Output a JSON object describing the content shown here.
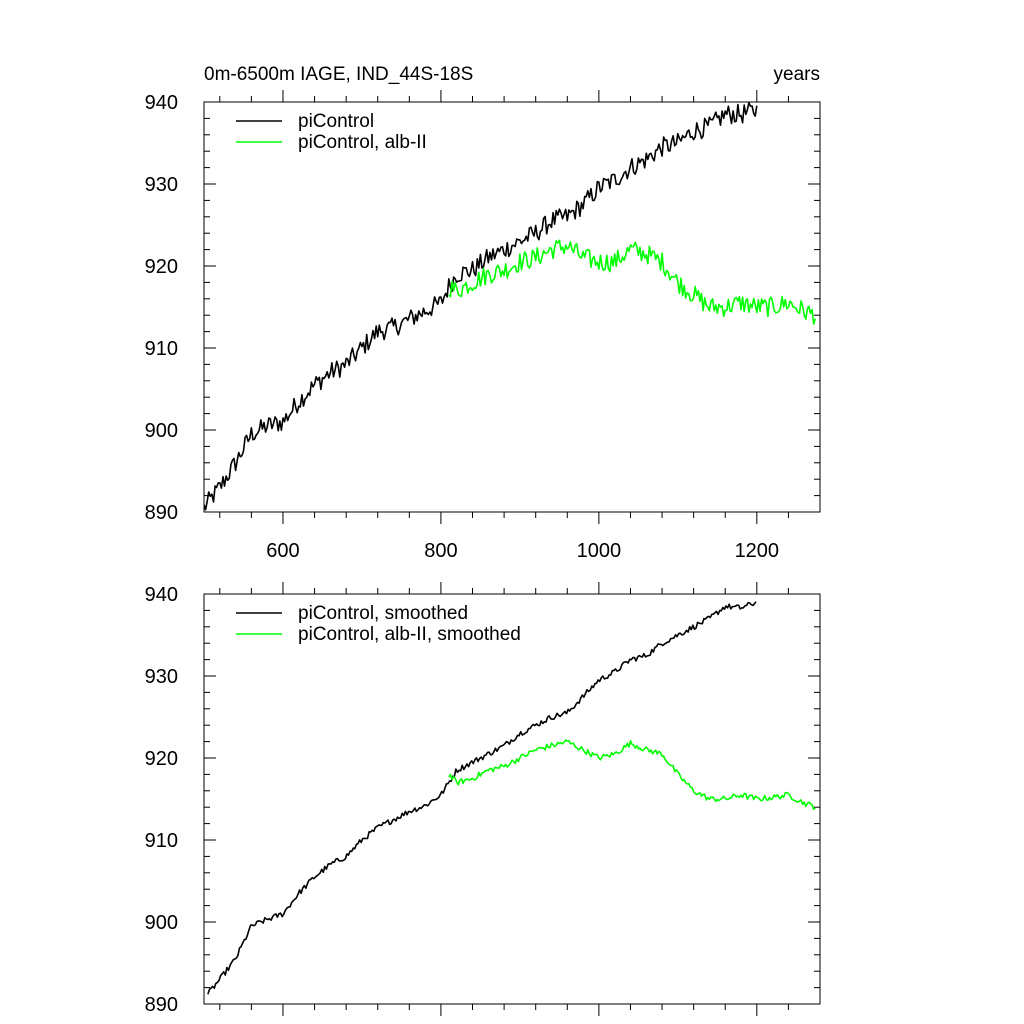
{
  "figure": {
    "title_left": "0m-6500m IAGE, IND_44S-18S",
    "title_right": "years"
  },
  "colors": {
    "picontrol": "#000000",
    "alb_ii": "#00ff00"
  },
  "chart_data": [
    {
      "type": "line",
      "title": "0m-6500m IAGE, IND_44S-18S",
      "ylabel": "years",
      "xlabel": "",
      "xlim": [
        500,
        1280
      ],
      "ylim": [
        890,
        940
      ],
      "xticks": [
        600,
        800,
        1000,
        1200
      ],
      "xtick_labels": [
        "600",
        "800",
        "1000",
        "1200"
      ],
      "yticks": [
        890,
        900,
        910,
        920,
        930,
        940
      ],
      "ytick_labels": [
        "890",
        "900",
        "910",
        "920",
        "930",
        "940"
      ],
      "legend_position": "top-left",
      "series": [
        {
          "name": "piControl",
          "color": "#000000",
          "noise": 1.2,
          "x": [
            500,
            520,
            540,
            560,
            580,
            600,
            620,
            640,
            660,
            680,
            700,
            720,
            740,
            760,
            780,
            800,
            810,
            820,
            840,
            860,
            880,
            900,
            920,
            940,
            960,
            980,
            1000,
            1020,
            1040,
            1060,
            1080,
            1100,
            1120,
            1140,
            1160,
            1180,
            1200
          ],
          "values": [
            890.5,
            893,
            896,
            899.5,
            900.5,
            901,
            903.5,
            905.5,
            907,
            908,
            910,
            912,
            912.5,
            913.5,
            914.5,
            915.5,
            917.5,
            919,
            919.5,
            921,
            922,
            923,
            924,
            925.5,
            926,
            927.5,
            929.5,
            930.5,
            932,
            933,
            934.5,
            935,
            936.5,
            937,
            938.5,
            938.5,
            939
          ]
        },
        {
          "name": "piControl, alb-II",
          "color": "#00ff00",
          "noise": 1.2,
          "x": [
            810,
            820,
            840,
            860,
            880,
            900,
            920,
            940,
            960,
            980,
            1000,
            1020,
            1040,
            1060,
            1080,
            1100,
            1120,
            1140,
            1160,
            1180,
            1200,
            1220,
            1240,
            1260,
            1275
          ],
          "values": [
            917.5,
            917,
            918,
            919,
            919.5,
            920.5,
            921,
            922,
            922.5,
            921,
            920.5,
            920.5,
            922,
            921.5,
            920.5,
            918,
            916.5,
            915,
            915,
            915.5,
            915,
            915,
            915.5,
            914.5,
            914
          ]
        }
      ]
    },
    {
      "type": "line",
      "title": "",
      "ylabel": "",
      "xlabel": "",
      "xlim": [
        500,
        1280
      ],
      "ylim": [
        890,
        940
      ],
      "xticks": [
        600,
        800,
        1000,
        1200
      ],
      "xtick_labels": [],
      "yticks": [
        890,
        900,
        910,
        920,
        930,
        940
      ],
      "ytick_labels": [
        "890",
        "900",
        "910",
        "920",
        "930",
        "940"
      ],
      "legend_position": "top-left",
      "series": [
        {
          "name": "piControl, smoothed",
          "color": "#000000",
          "noise": 0.35,
          "x": [
            505,
            520,
            540,
            560,
            580,
            600,
            620,
            640,
            660,
            680,
            700,
            720,
            740,
            760,
            780,
            800,
            810,
            820,
            840,
            860,
            880,
            900,
            920,
            940,
            960,
            980,
            1000,
            1020,
            1040,
            1060,
            1080,
            1100,
            1120,
            1140,
            1160,
            1180,
            1200
          ],
          "values": [
            891.2,
            893,
            895.5,
            899.5,
            900.3,
            901,
            903.5,
            905.5,
            907,
            908,
            910,
            911.5,
            912.5,
            913.5,
            914.2,
            915.5,
            917,
            918.5,
            919.5,
            920.5,
            921.5,
            923,
            924,
            925,
            925.5,
            927.5,
            929.5,
            930.5,
            932,
            932.5,
            934,
            935,
            936,
            937,
            938.5,
            938.3,
            939
          ]
        },
        {
          "name": "piControl, alb-II, smoothed",
          "color": "#00ff00",
          "noise": 0.35,
          "x": [
            810,
            820,
            840,
            860,
            880,
            900,
            920,
            940,
            960,
            980,
            1000,
            1020,
            1040,
            1060,
            1080,
            1100,
            1120,
            1140,
            1160,
            1180,
            1200,
            1220,
            1240,
            1260,
            1275
          ],
          "values": [
            918,
            917,
            917.5,
            918.5,
            919,
            920,
            921,
            921.5,
            922,
            921,
            920,
            920.5,
            921.8,
            921,
            920.5,
            918,
            916,
            915,
            915,
            915.5,
            915,
            915.2,
            915.5,
            914.5,
            914
          ]
        }
      ]
    }
  ]
}
